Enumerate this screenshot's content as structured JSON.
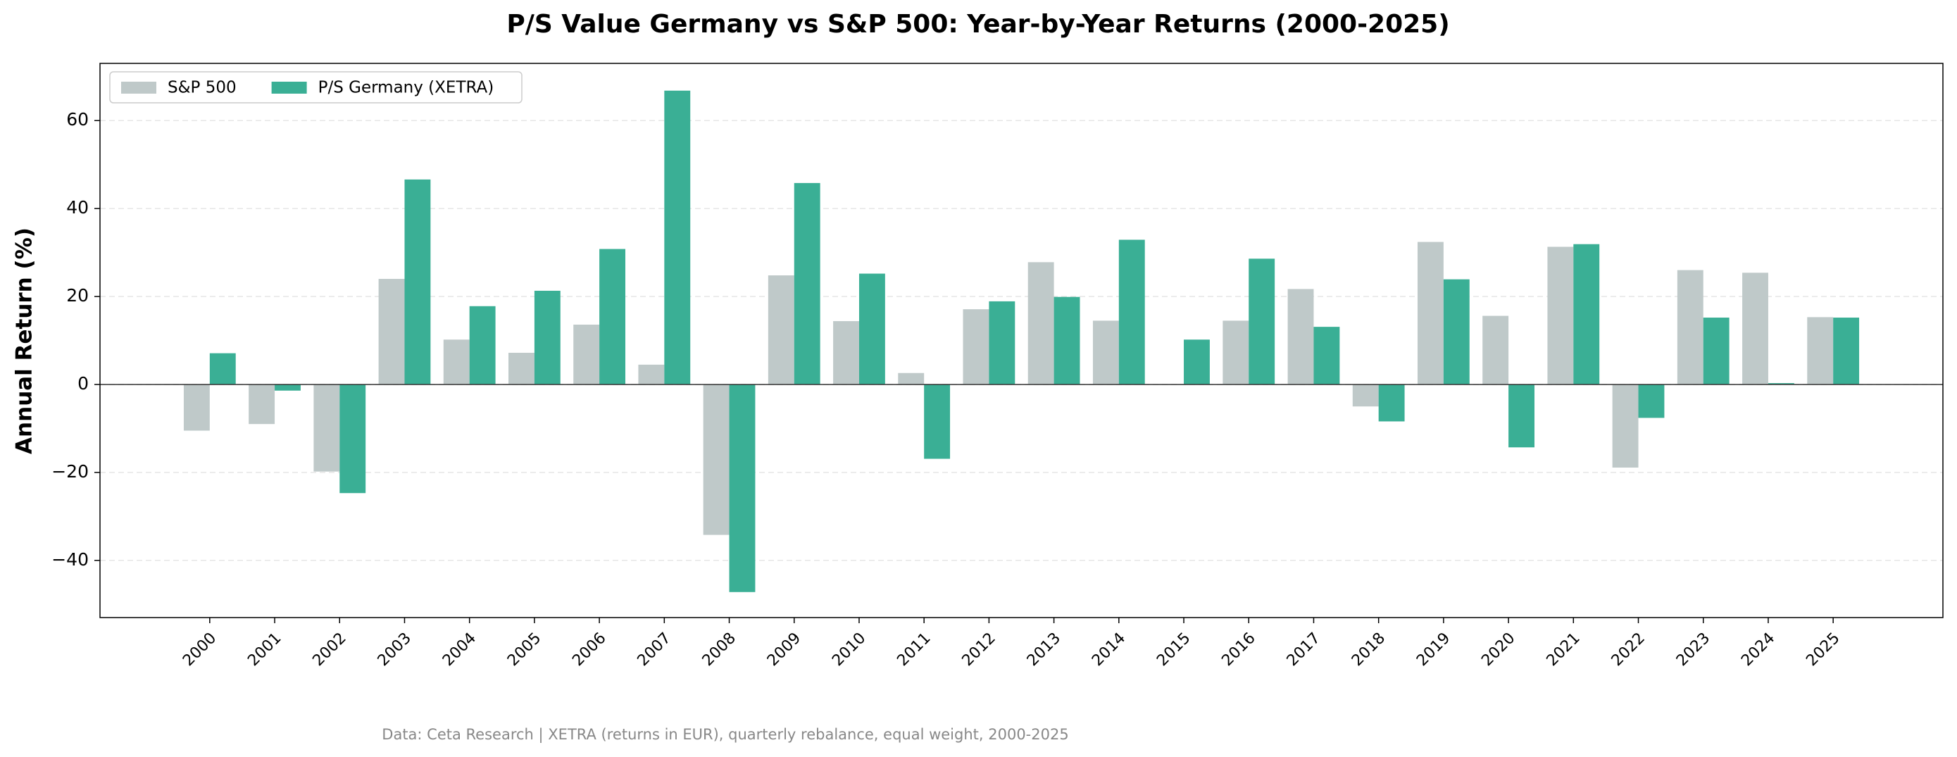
{
  "chart_data": {
    "type": "bar",
    "title": "P/S Value Germany vs S&P 500: Year-by-Year Returns (2000-2025)",
    "ylabel": "Annual Return (%)",
    "footnote": "Data: Ceta Research | XETRA (returns in EUR), quarterly rebalance, equal weight, 2000-2025",
    "categories": [
      "2000",
      "2001",
      "2002",
      "2003",
      "2004",
      "2005",
      "2006",
      "2007",
      "2008",
      "2009",
      "2010",
      "2011",
      "2012",
      "2013",
      "2014",
      "2015",
      "2016",
      "2017",
      "2018",
      "2019",
      "2020",
      "2021",
      "2022",
      "2023",
      "2024",
      "2025"
    ],
    "series": [
      {
        "name": "S&P 500",
        "color": "#bfc9c9",
        "values": [
          -10.5,
          -9,
          -19.8,
          24,
          10.2,
          7.2,
          13.6,
          4.5,
          -34.2,
          24.8,
          14.4,
          2.6,
          17.1,
          27.8,
          14.5,
          null,
          14.5,
          21.7,
          -5,
          32.4,
          15.6,
          31.3,
          -18.9,
          26,
          25.4,
          15.3
        ]
      },
      {
        "name": "P/S Germany (XETRA)",
        "color": "#3aaf95",
        "values": [
          7.1,
          -1.4,
          -24.7,
          46.6,
          17.8,
          21.3,
          30.8,
          66.8,
          -47.2,
          45.8,
          25.2,
          -16.9,
          18.9,
          19.9,
          32.9,
          10.2,
          28.6,
          13.1,
          -8.4,
          23.9,
          -14.3,
          31.9,
          -7.6,
          15.2,
          0.3,
          15.2
        ]
      }
    ],
    "ylim": [
      -53,
      73
    ],
    "yticks": [
      {
        "value": -40,
        "label": "−40"
      },
      {
        "value": -20,
        "label": "−20"
      },
      0,
      20,
      40,
      60
    ],
    "grid": true,
    "legend": "upper-left"
  }
}
